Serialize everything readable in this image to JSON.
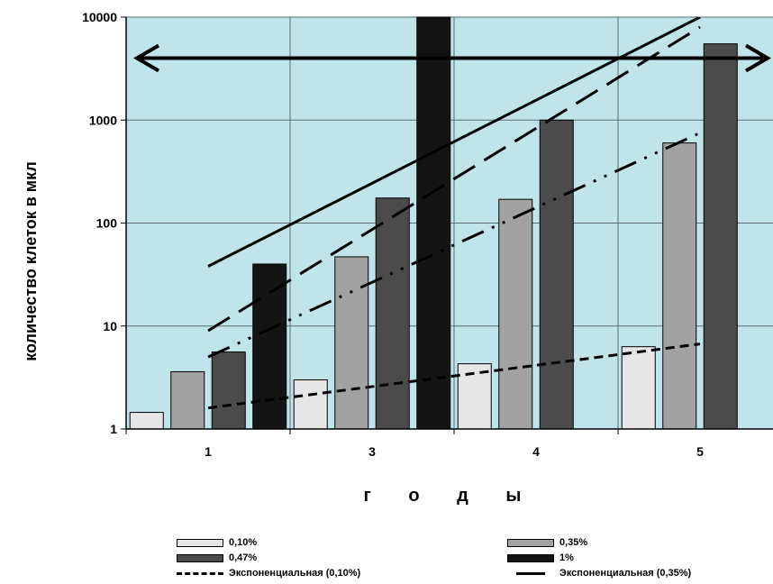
{
  "chart_data": {
    "type": "bar",
    "yscale": "log",
    "ylim": [
      1,
      10000
    ],
    "yticks": [
      1,
      10,
      100,
      1000,
      10000
    ],
    "categories": [
      "1",
      "3",
      "4",
      "5"
    ],
    "xlabel": "г о д ы",
    "ylabel": "количество клеток в мкл",
    "grid": true,
    "series": [
      {
        "name": "0,10%",
        "color": "#e6e6e6",
        "values": [
          1.45,
          3.0,
          4.3,
          6.3
        ]
      },
      {
        "name": "0,35%",
        "color": "#a2a2a2",
        "values": [
          3.6,
          47,
          170,
          600
        ]
      },
      {
        "name": "0,47%",
        "color": "#4b4b4b",
        "values": [
          5.6,
          175,
          1000,
          5500
        ]
      },
      {
        "name": "1%",
        "color": "#141414",
        "values": [
          40,
          10000,
          null,
          null
        ]
      }
    ],
    "trendlines": [
      {
        "name": "Экспоненциальная (0,10%)",
        "style": "dashed",
        "start": 1.6,
        "end": 6.7
      },
      {
        "name": "Экспоненциальная (0,35%)",
        "style": "solid",
        "start": 38,
        "end": 10000
      }
    ],
    "arrow_level": 4000,
    "plot_background": "#bfe4ea"
  }
}
